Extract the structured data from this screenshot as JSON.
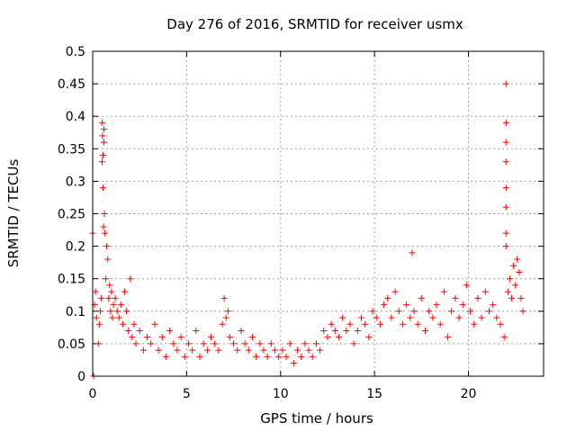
{
  "chart_data": {
    "type": "scatter",
    "title": "Day 276 of 2016, SRMTID for receiver usmx",
    "xlabel": "GPS time / hours",
    "ylabel": "SRMTID / TECUs",
    "xlim": [
      0,
      24
    ],
    "ylim": [
      0,
      0.5
    ],
    "xticks": [
      0,
      5,
      10,
      15,
      20
    ],
    "yticks": [
      0,
      0.05,
      0.1,
      0.15,
      0.2,
      0.25,
      0.3,
      0.35,
      0.4,
      0.45,
      0.5
    ],
    "grid": true,
    "marker": "plus",
    "color": "#ff0000",
    "series": [
      {
        "name": "SRMTID",
        "x": [
          0.0,
          0.05,
          0.1,
          0.15,
          0.2,
          0.3,
          0.35,
          0.4,
          0.45,
          0.5,
          0.5,
          0.52,
          0.55,
          0.55,
          0.58,
          0.6,
          0.6,
          0.62,
          0.65,
          0.7,
          0.75,
          0.8,
          0.85,
          0.9,
          0.95,
          1.0,
          1.05,
          1.1,
          1.2,
          1.3,
          1.4,
          1.5,
          1.6,
          1.7,
          1.8,
          1.9,
          2.0,
          2.1,
          2.2,
          2.3,
          2.5,
          2.7,
          2.9,
          3.1,
          3.3,
          3.5,
          3.7,
          3.9,
          4.1,
          4.3,
          4.5,
          4.7,
          4.9,
          5.1,
          5.3,
          5.5,
          5.7,
          5.9,
          6.1,
          6.3,
          6.5,
          6.7,
          6.9,
          7.0,
          7.1,
          7.2,
          7.3,
          7.5,
          7.7,
          7.9,
          8.1,
          8.3,
          8.5,
          8.7,
          8.9,
          9.1,
          9.3,
          9.5,
          9.7,
          9.9,
          10.1,
          10.3,
          10.5,
          10.7,
          10.9,
          11.1,
          11.3,
          11.5,
          11.7,
          11.9,
          12.1,
          12.3,
          12.5,
          12.7,
          12.9,
          13.1,
          13.3,
          13.5,
          13.7,
          13.9,
          14.1,
          14.3,
          14.5,
          14.7,
          14.9,
          15.1,
          15.3,
          15.5,
          15.7,
          15.9,
          16.1,
          16.3,
          16.5,
          16.7,
          16.9,
          17.0,
          17.1,
          17.3,
          17.5,
          17.7,
          17.9,
          18.1,
          18.3,
          18.5,
          18.7,
          18.9,
          19.1,
          19.3,
          19.5,
          19.7,
          19.9,
          20.1,
          20.3,
          20.5,
          20.7,
          20.9,
          21.1,
          21.3,
          21.5,
          21.7,
          21.9,
          22.0,
          22.0,
          22.0,
          22.0,
          22.0,
          22.0,
          22.0,
          22.0,
          22.1,
          22.2,
          22.3,
          22.4,
          22.5,
          22.6,
          22.7,
          22.8,
          22.9
        ],
        "y": [
          0.22,
          0.0,
          0.11,
          0.13,
          0.09,
          0.05,
          0.08,
          0.1,
          0.12,
          0.33,
          0.39,
          0.37,
          0.34,
          0.29,
          0.23,
          0.36,
          0.38,
          0.25,
          0.22,
          0.15,
          0.2,
          0.18,
          0.12,
          0.14,
          0.1,
          0.13,
          0.09,
          0.11,
          0.12,
          0.1,
          0.09,
          0.11,
          0.08,
          0.13,
          0.1,
          0.07,
          0.15,
          0.06,
          0.08,
          0.05,
          0.07,
          0.04,
          0.06,
          0.05,
          0.08,
          0.04,
          0.06,
          0.03,
          0.07,
          0.05,
          0.04,
          0.06,
          0.03,
          0.05,
          0.04,
          0.07,
          0.03,
          0.05,
          0.04,
          0.06,
          0.05,
          0.04,
          0.08,
          0.12,
          0.09,
          0.1,
          0.06,
          0.05,
          0.04,
          0.07,
          0.05,
          0.04,
          0.06,
          0.03,
          0.05,
          0.04,
          0.03,
          0.05,
          0.04,
          0.03,
          0.04,
          0.03,
          0.05,
          0.02,
          0.04,
          0.03,
          0.05,
          0.04,
          0.03,
          0.05,
          0.04,
          0.07,
          0.06,
          0.08,
          0.07,
          0.06,
          0.09,
          0.07,
          0.08,
          0.05,
          0.07,
          0.09,
          0.08,
          0.06,
          0.1,
          0.09,
          0.08,
          0.11,
          0.12,
          0.09,
          0.13,
          0.1,
          0.08,
          0.11,
          0.09,
          0.19,
          0.1,
          0.08,
          0.12,
          0.07,
          0.1,
          0.09,
          0.11,
          0.08,
          0.13,
          0.06,
          0.1,
          0.12,
          0.09,
          0.11,
          0.14,
          0.1,
          0.08,
          0.12,
          0.09,
          0.13,
          0.1,
          0.11,
          0.09,
          0.08,
          0.06,
          0.2,
          0.22,
          0.26,
          0.29,
          0.33,
          0.36,
          0.39,
          0.45,
          0.13,
          0.15,
          0.12,
          0.17,
          0.14,
          0.18,
          0.16,
          0.12,
          0.1
        ]
      }
    ]
  }
}
